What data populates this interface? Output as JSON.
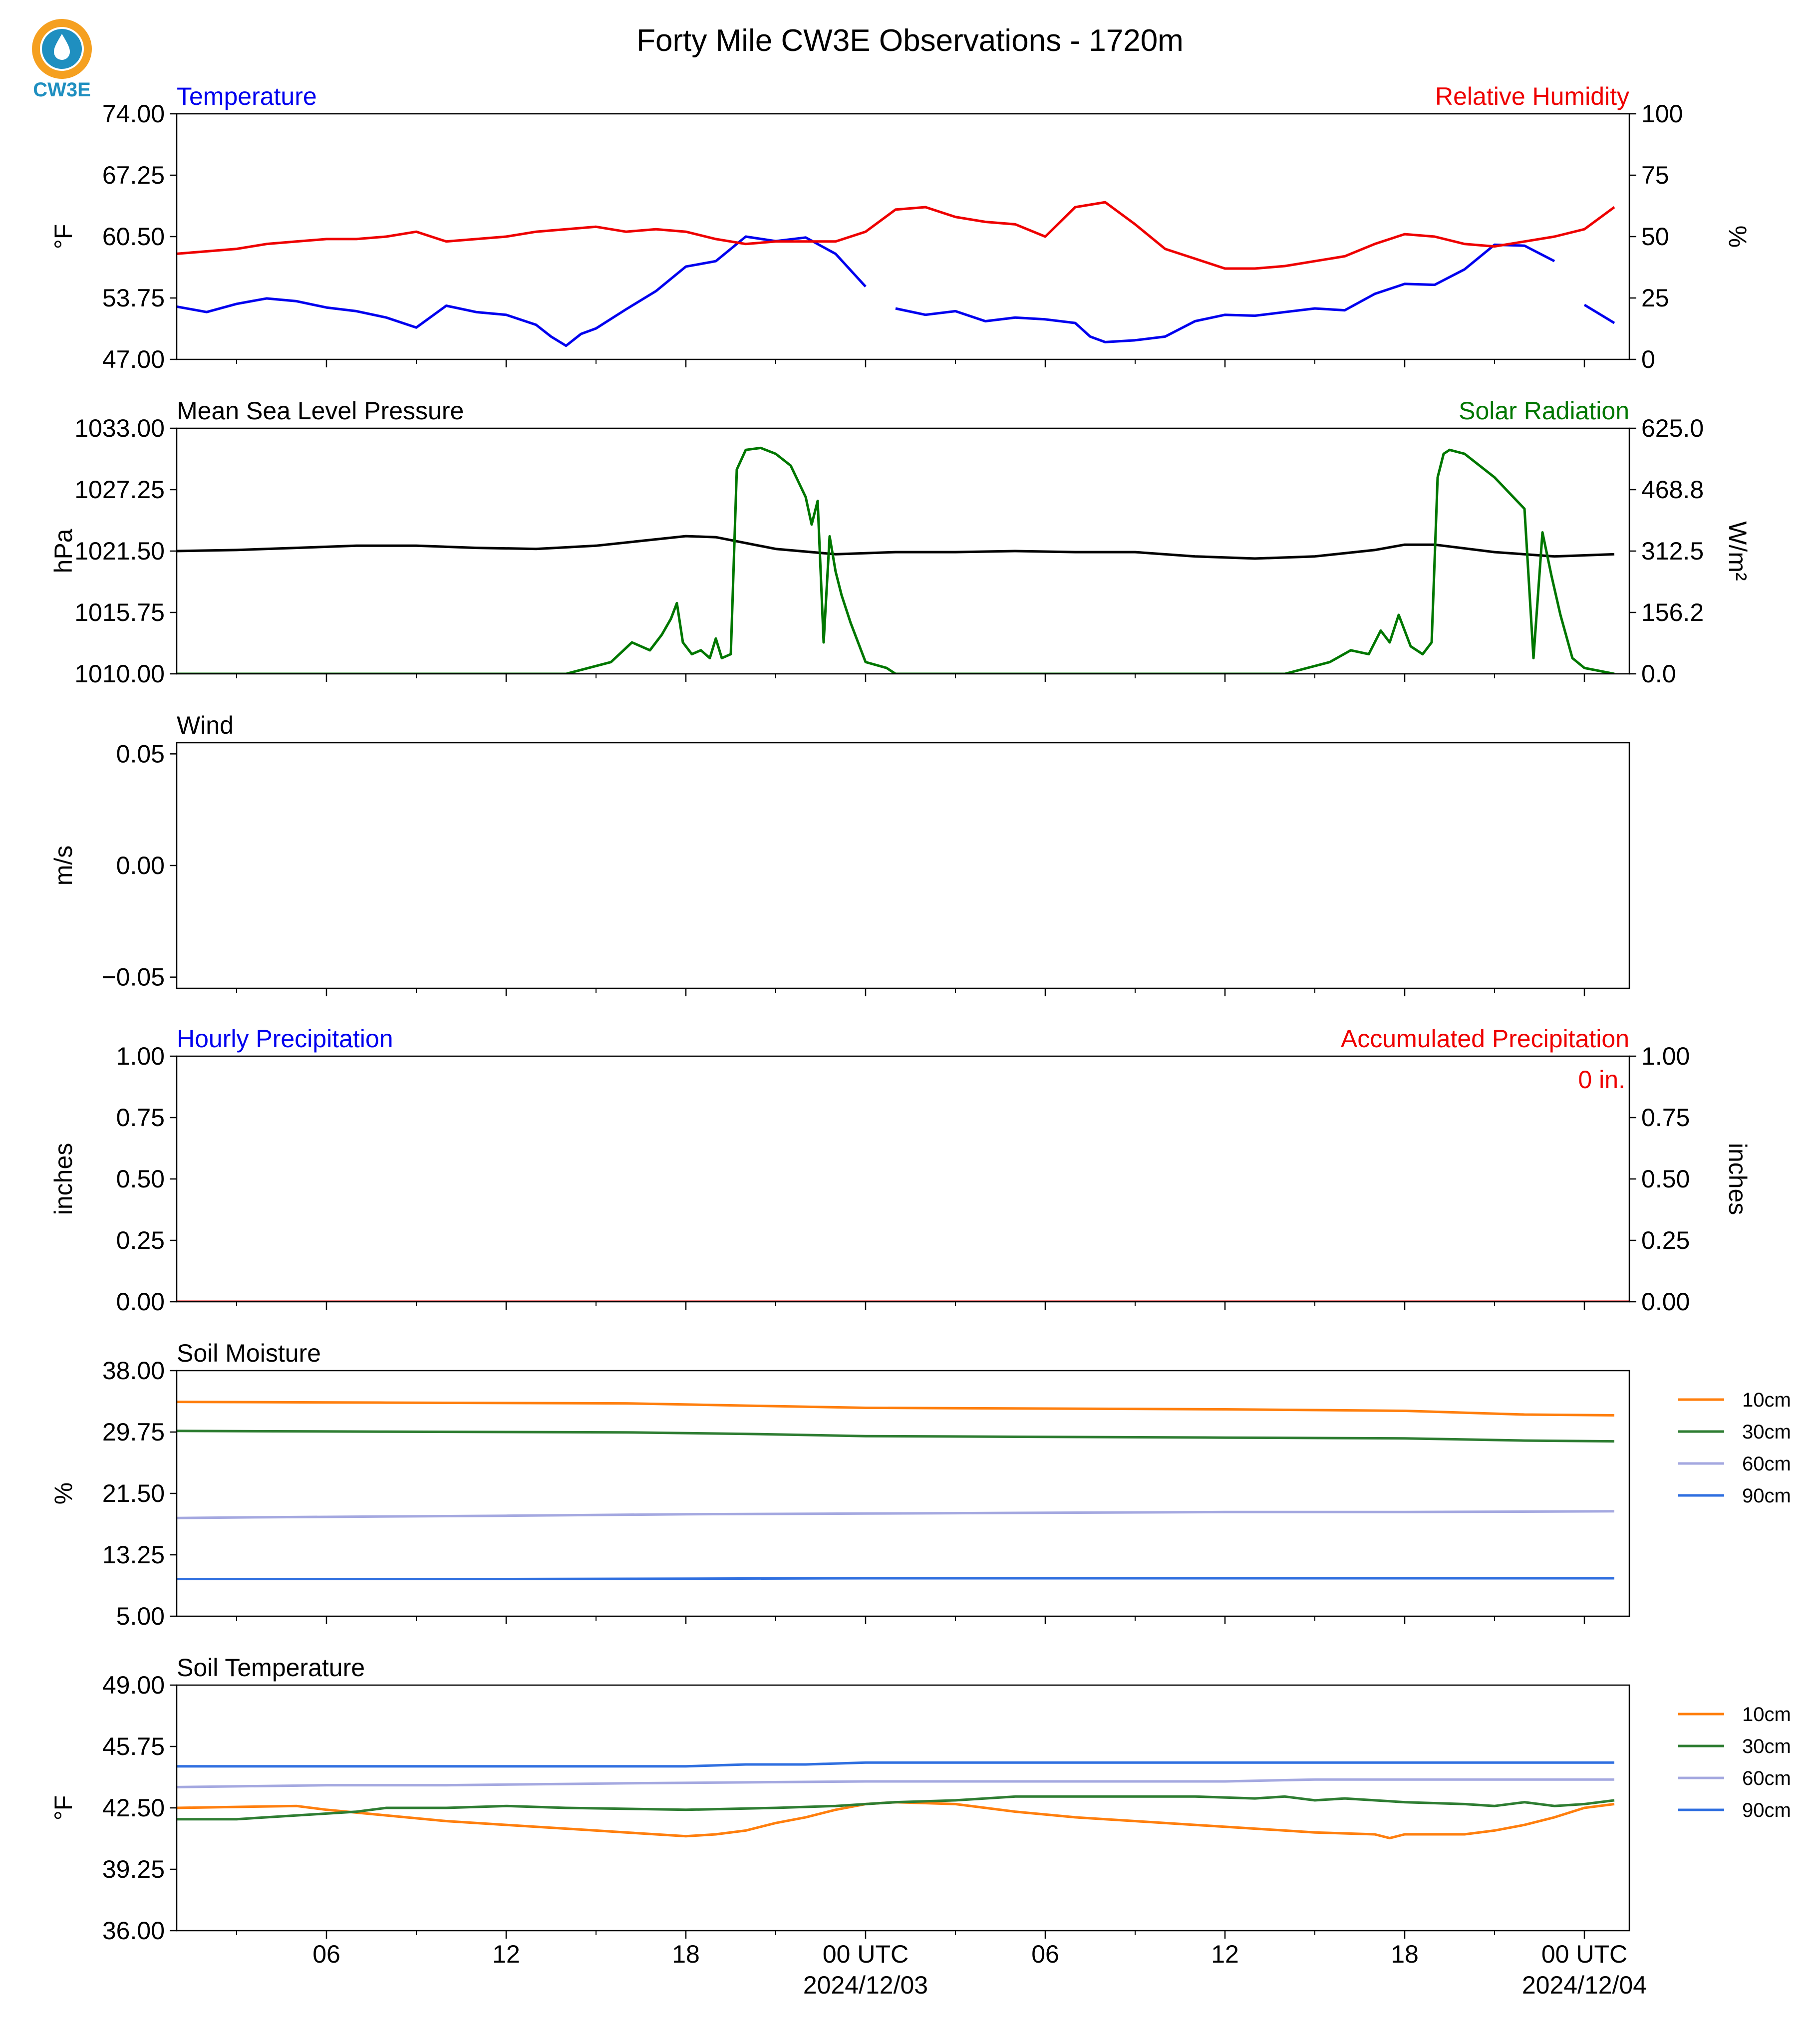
{
  "figure": {
    "title": "Forty Mile CW3E Observations - 1720m",
    "logo_text": "CW3E",
    "colors": {
      "blue": "#0000ee",
      "red": "#ee0000",
      "green": "#007700",
      "black": "#000000",
      "soil_10cm": "#ff7f0e",
      "soil_30cm": "#2e7d32",
      "soil_60cm": "#a4a8e0",
      "soil_90cm": "#2f6fe0",
      "logo_orange": "#f5a020",
      "logo_blue": "#1f8fc0"
    },
    "x_axis": {
      "x_unit": "hours since 2024-12-02 00 UTC",
      "xlim": [
        1,
        49.5
      ],
      "major_ticks": [
        {
          "x": 6,
          "label": "06",
          "date": ""
        },
        {
          "x": 12,
          "label": "12",
          "date": ""
        },
        {
          "x": 18,
          "label": "18",
          "date": ""
        },
        {
          "x": 24,
          "label": "00 UTC",
          "date": "2024/12/03"
        },
        {
          "x": 30,
          "label": "06",
          "date": ""
        },
        {
          "x": 36,
          "label": "12",
          "date": ""
        },
        {
          "x": 42,
          "label": "18",
          "date": ""
        },
        {
          "x": 48,
          "label": "00 UTC",
          "date": "2024/12/04"
        }
      ],
      "minor_ticks": [
        3,
        9,
        15,
        21,
        27,
        33,
        39,
        45
      ]
    }
  },
  "chart_data": [
    {
      "type": "line",
      "id": "temp_rh",
      "title_left": "Temperature",
      "title_right": "Relative Humidity",
      "ylabel": "°F",
      "ylabel_right": "%",
      "ylim": [
        47.0,
        74.0
      ],
      "yticks": [
        "74.00",
        "67.25",
        "60.50",
        "53.75",
        "47.00"
      ],
      "ylim_right": [
        0,
        100
      ],
      "yticks_right": [
        "100",
        "75",
        "50",
        "25",
        "0"
      ],
      "series": [
        {
          "name": "Temperature",
          "axis": "left",
          "color": "blue",
          "x": [
            1,
            2,
            3,
            4,
            5,
            6,
            7,
            8,
            9,
            10,
            11,
            12,
            13,
            13.5,
            14,
            14.5,
            15,
            16,
            17,
            18,
            19,
            20,
            21,
            22,
            23,
            24,
            25,
            26,
            27,
            28,
            29,
            30,
            31,
            31.5,
            32,
            33,
            34,
            35,
            36,
            37,
            38,
            39,
            40,
            41,
            42,
            43,
            44,
            45,
            46,
            47,
            48,
            49
          ],
          "y": [
            52.8,
            52.2,
            53.1,
            53.7,
            53.4,
            52.7,
            52.3,
            51.6,
            50.5,
            52.9,
            52.2,
            51.9,
            50.8,
            49.5,
            48.5,
            49.8,
            50.4,
            52.5,
            54.5,
            57.2,
            57.8,
            60.5,
            60.0,
            60.4,
            58.6,
            55.0,
            52.6,
            51.9,
            52.3,
            51.2,
            51.6,
            51.4,
            51.0,
            49.5,
            48.9,
            49.1,
            49.5,
            51.2,
            51.9,
            51.8,
            52.2,
            52.6,
            52.4,
            54.2,
            55.3,
            55.2,
            56.9,
            59.6,
            59.5,
            57.8,
            53.0,
            51.0
          ],
          "gaps_after_x": [
            24,
            47
          ]
        },
        {
          "name": "Relative Humidity",
          "axis": "right",
          "color": "red",
          "x": [
            1,
            2,
            3,
            4,
            5,
            6,
            7,
            8,
            9,
            10,
            11,
            12,
            13,
            14,
            15,
            16,
            17,
            18,
            19,
            20,
            21,
            22,
            23,
            24,
            25,
            26,
            27,
            28,
            29,
            30,
            31,
            32,
            33,
            34,
            35,
            36,
            37,
            38,
            39,
            40,
            41,
            42,
            43,
            44,
            45,
            46,
            47,
            48,
            49
          ],
          "y": [
            43,
            44,
            45,
            47,
            48,
            49,
            49,
            50,
            52,
            48,
            49,
            50,
            52,
            53,
            54,
            52,
            53,
            52,
            49,
            47,
            48,
            48,
            48,
            52,
            61,
            62,
            58,
            56,
            55,
            50,
            62,
            64,
            55,
            45,
            41,
            37,
            37,
            38,
            40,
            42,
            47,
            51,
            50,
            47,
            46,
            48,
            50,
            53,
            62
          ]
        }
      ]
    },
    {
      "type": "line",
      "id": "pressure_solar",
      "title_left": "Mean Sea Level Pressure",
      "title_right": "Solar Radiation",
      "ylabel": "hPa",
      "ylabel_right": "W/m²",
      "ylim": [
        1010.0,
        1033.0
      ],
      "yticks": [
        "1033.00",
        "1027.25",
        "1021.50",
        "1015.75",
        "1010.00"
      ],
      "ylim_right": [
        0,
        625
      ],
      "yticks_right": [
        "625.0",
        "468.8",
        "312.5",
        "156.2",
        "0.0"
      ],
      "series": [
        {
          "name": "Mean Sea Level Pressure",
          "axis": "left",
          "color": "black",
          "x": [
            1,
            3,
            5,
            7,
            9,
            11,
            13,
            15,
            17,
            18,
            19,
            21,
            23,
            25,
            27,
            29,
            31,
            33,
            35,
            37,
            39,
            41,
            42,
            43,
            45,
            47,
            49
          ],
          "y": [
            1021.5,
            1021.6,
            1021.8,
            1022.0,
            1022.0,
            1021.8,
            1021.7,
            1022.0,
            1022.6,
            1022.9,
            1022.8,
            1021.7,
            1021.2,
            1021.4,
            1021.4,
            1021.5,
            1021.4,
            1021.4,
            1021.0,
            1020.8,
            1021.0,
            1021.6,
            1022.1,
            1022.1,
            1021.4,
            1021.0,
            1021.2
          ]
        },
        {
          "name": "Solar Radiation",
          "axis": "right",
          "color": "green",
          "x": [
            1,
            14,
            15.5,
            16.2,
            16.8,
            17.2,
            17.5,
            17.7,
            17.9,
            18.2,
            18.5,
            18.8,
            19.0,
            19.2,
            19.5,
            19.7,
            20,
            20.5,
            21.0,
            21.5,
            22.0,
            22.2,
            22.4,
            22.6,
            22.8,
            23.0,
            23.2,
            23.5,
            24,
            24.7,
            25,
            38,
            39.5,
            40.2,
            40.8,
            41.2,
            41.5,
            41.8,
            42.2,
            42.6,
            42.9,
            43.1,
            43.3,
            43.5,
            44,
            45,
            46,
            46.3,
            46.6,
            46.9,
            47.2,
            47.6,
            48,
            49
          ],
          "y": [
            0,
            0,
            30,
            80,
            60,
            100,
            140,
            180,
            80,
            50,
            60,
            40,
            90,
            40,
            50,
            520,
            570,
            575,
            560,
            530,
            450,
            380,
            440,
            80,
            350,
            260,
            200,
            130,
            30,
            15,
            0,
            0,
            30,
            60,
            50,
            110,
            80,
            150,
            70,
            50,
            80,
            500,
            560,
            570,
            560,
            500,
            420,
            40,
            360,
            250,
            150,
            40,
            15,
            0
          ]
        }
      ]
    },
    {
      "type": "line",
      "id": "wind",
      "title_left": "Wind",
      "title_right": "",
      "ylabel": "m/s",
      "ylim": [
        -0.055,
        0.055
      ],
      "yticks": [
        "0.05",
        "0.00",
        "−0.05"
      ],
      "ytick_values": [
        0.05,
        0.0,
        -0.05
      ],
      "series": []
    },
    {
      "type": "bar",
      "id": "precip",
      "title_left": "Hourly Precipitation",
      "title_right": "Accumulated Precipitation",
      "annotation": "0 in.",
      "ylabel": "inches",
      "ylabel_right": "inches",
      "ylim": [
        0,
        1
      ],
      "yticks": [
        "1.00",
        "0.75",
        "0.50",
        "0.25",
        "0.00"
      ],
      "ylim_right": [
        0,
        1
      ],
      "yticks_right": [
        "1.00",
        "0.75",
        "0.50",
        "0.25",
        "0.00"
      ],
      "series": [
        {
          "name": "Accumulated Precipitation",
          "axis": "right",
          "color": "red",
          "x": [
            1,
            49.5
          ],
          "y": [
            0,
            0
          ]
        }
      ]
    },
    {
      "type": "line",
      "id": "soil_moisture",
      "title_left": "Soil Moisture",
      "title_right": "",
      "ylabel": "%",
      "ylim": [
        5.0,
        38.0
      ],
      "yticks": [
        "38.00",
        "29.75",
        "21.50",
        "13.25",
        "5.00"
      ],
      "legend": "right",
      "series": [
        {
          "name": "10cm",
          "color": "soil_10cm",
          "x": [
            1,
            8,
            16,
            20,
            24,
            30,
            36,
            42,
            46,
            49
          ],
          "y": [
            33.8,
            33.7,
            33.6,
            33.3,
            33.0,
            32.9,
            32.8,
            32.6,
            32.1,
            32.0
          ]
        },
        {
          "name": "30cm",
          "color": "soil_30cm",
          "x": [
            1,
            8,
            16,
            20,
            24,
            30,
            36,
            42,
            46,
            49
          ],
          "y": [
            29.9,
            29.8,
            29.7,
            29.5,
            29.2,
            29.1,
            29.0,
            28.9,
            28.6,
            28.5
          ]
        },
        {
          "name": "60cm",
          "color": "soil_60cm",
          "x": [
            1,
            4,
            12,
            18,
            24,
            30,
            36,
            42,
            49
          ],
          "y": [
            18.2,
            18.3,
            18.5,
            18.7,
            18.8,
            18.9,
            19.0,
            19.0,
            19.1
          ]
        },
        {
          "name": "90cm",
          "color": "soil_90cm",
          "x": [
            1,
            12,
            24,
            36,
            49
          ],
          "y": [
            10.0,
            10.0,
            10.1,
            10.1,
            10.1
          ]
        }
      ]
    },
    {
      "type": "line",
      "id": "soil_temperature",
      "title_left": "Soil Temperature",
      "title_right": "",
      "ylabel": "°F",
      "ylim": [
        36.0,
        49.0
      ],
      "yticks": [
        "49.00",
        "45.75",
        "42.50",
        "39.25",
        "36.00"
      ],
      "legend": "right",
      "series": [
        {
          "name": "10cm",
          "color": "soil_10cm",
          "x": [
            1,
            5,
            6,
            8,
            10,
            12,
            14,
            15,
            16,
            18,
            19,
            20,
            21,
            22,
            23,
            24,
            25,
            27,
            28,
            29,
            31,
            33,
            35,
            37,
            38,
            39,
            41,
            41.5,
            42,
            44,
            45,
            46,
            47,
            48,
            49
          ],
          "y": [
            42.5,
            42.6,
            42.4,
            42.1,
            41.8,
            41.6,
            41.4,
            41.3,
            41.2,
            41.0,
            41.1,
            41.3,
            41.7,
            42.0,
            42.4,
            42.7,
            42.8,
            42.7,
            42.5,
            42.3,
            42.0,
            41.8,
            41.6,
            41.4,
            41.3,
            41.2,
            41.1,
            40.9,
            41.1,
            41.1,
            41.3,
            41.6,
            42.0,
            42.5,
            42.7
          ]
        },
        {
          "name": "30cm",
          "color": "soil_30cm",
          "x": [
            1,
            3,
            4,
            5,
            6,
            7,
            8,
            10,
            12,
            14,
            18,
            21,
            23,
            24,
            25,
            27,
            29,
            30,
            35,
            37,
            38,
            39,
            40,
            42,
            44,
            45,
            46,
            47,
            48,
            49
          ],
          "y": [
            41.9,
            41.9,
            42.0,
            42.1,
            42.2,
            42.3,
            42.5,
            42.5,
            42.6,
            42.5,
            42.4,
            42.5,
            42.6,
            42.7,
            42.8,
            42.9,
            43.1,
            43.1,
            43.1,
            43.0,
            43.1,
            42.9,
            43.0,
            42.8,
            42.7,
            42.6,
            42.8,
            42.6,
            42.7,
            42.9
          ]
        },
        {
          "name": "60cm",
          "color": "soil_60cm",
          "x": [
            1,
            6,
            10,
            16,
            24,
            30,
            36,
            39,
            41,
            49
          ],
          "y": [
            43.6,
            43.7,
            43.7,
            43.8,
            43.9,
            43.9,
            43.9,
            44.0,
            44.0,
            44.0
          ]
        },
        {
          "name": "90cm",
          "color": "soil_90cm",
          "x": [
            1,
            12,
            18,
            20,
            22,
            24,
            36,
            49
          ],
          "y": [
            44.7,
            44.7,
            44.7,
            44.8,
            44.8,
            44.9,
            44.9,
            44.9
          ]
        }
      ]
    }
  ]
}
